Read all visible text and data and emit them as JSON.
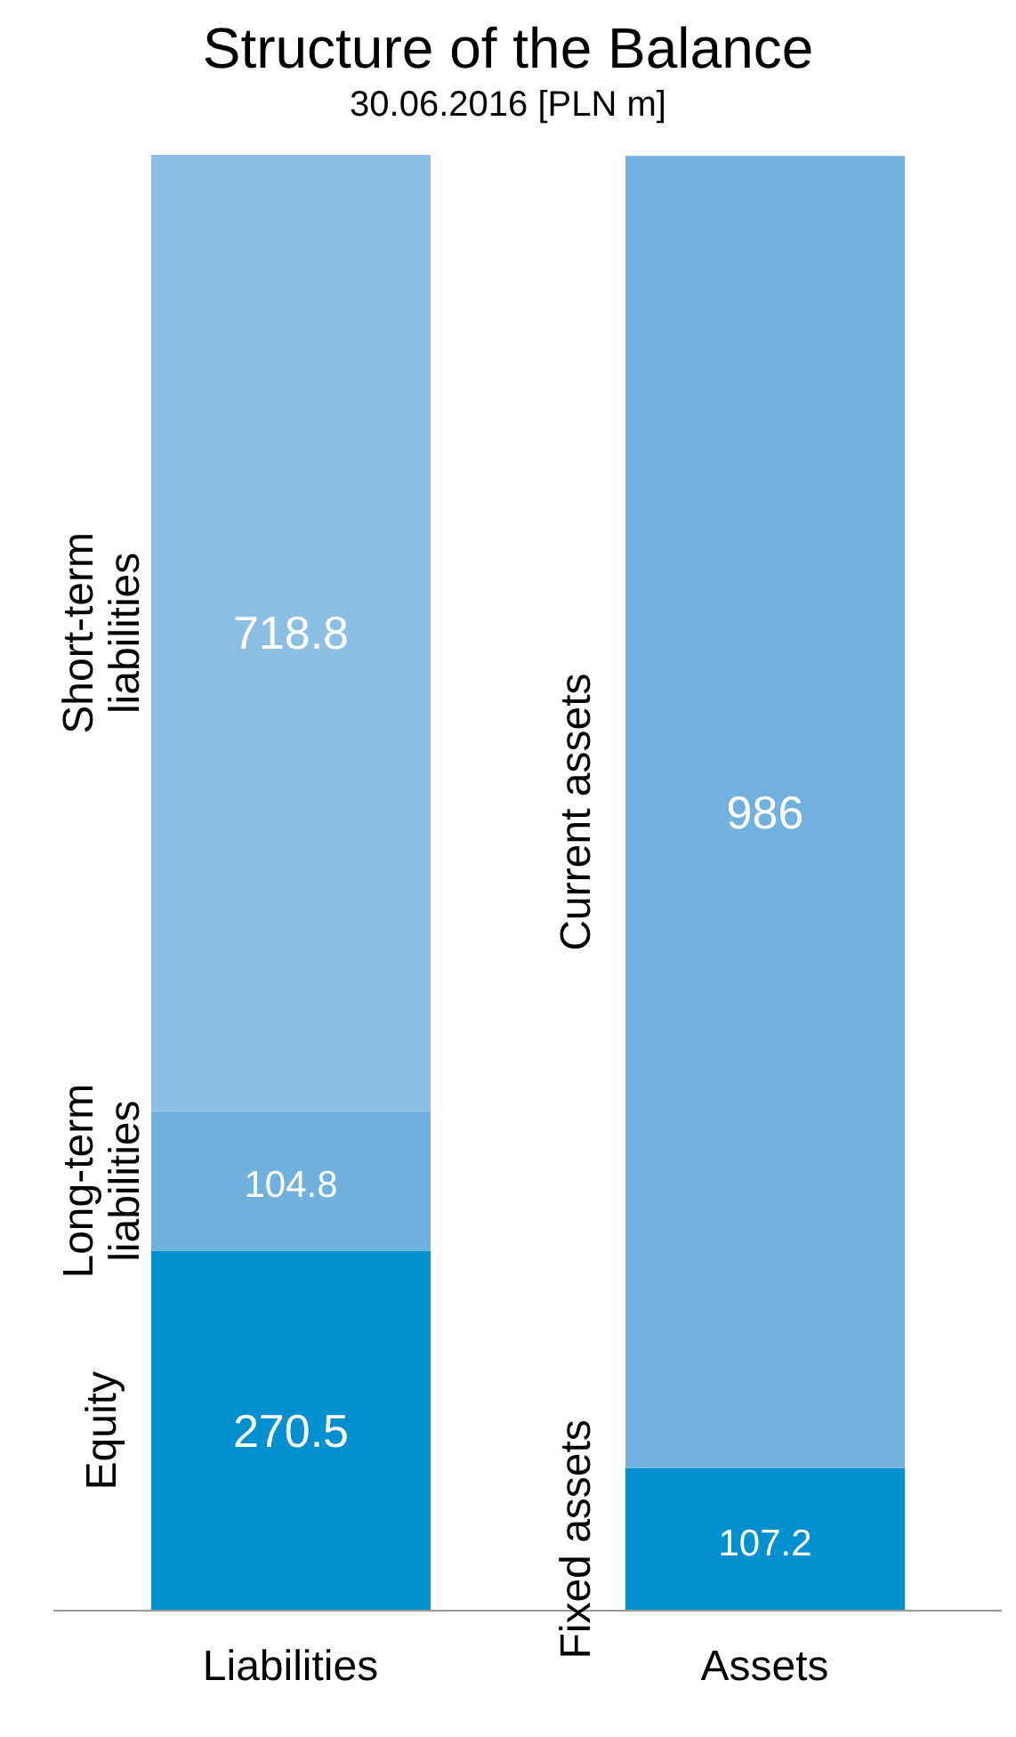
{
  "chart_data": {
    "type": "bar",
    "title": "Structure of the Balance",
    "subtitle": "30.06.2016   [PLN m]",
    "categories": [
      "Liabilities",
      "Assets"
    ],
    "stacked": true,
    "data_labels": true,
    "grid": false,
    "legend": false,
    "series": [
      {
        "name": "Equity",
        "color": "#0090d0",
        "values": [
          270.5,
          null
        ]
      },
      {
        "name": "Long-term liabilities",
        "color": "#6fb0dd",
        "values": [
          104.8,
          null
        ]
      },
      {
        "name": "Short-term liabilities",
        "color": "#8cbfe4",
        "values": [
          718.8,
          null
        ]
      },
      {
        "name": "Fixed assets",
        "color": "#0090d0",
        "values": [
          null,
          107.2
        ]
      },
      {
        "name": "Current assets",
        "color": "#72b1de",
        "values": [
          null,
          986
        ]
      }
    ]
  }
}
